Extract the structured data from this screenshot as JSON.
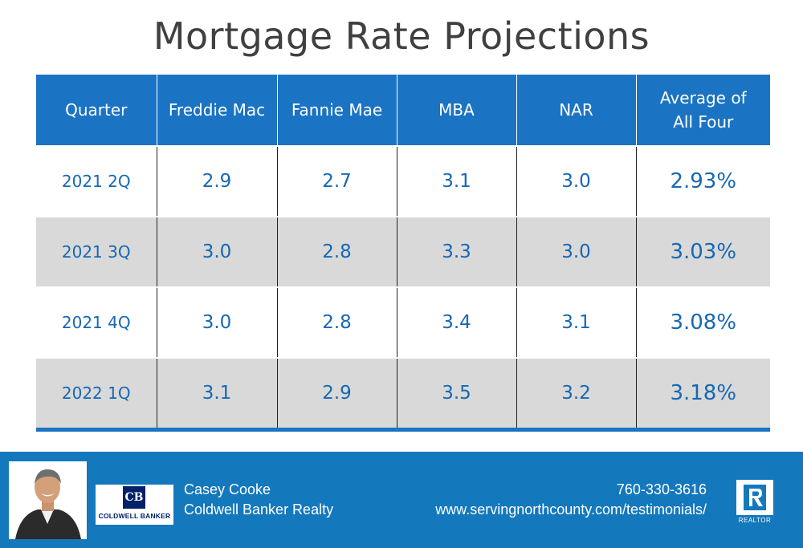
{
  "title": "Mortgage Rate Projections",
  "table": {
    "headers": [
      "Quarter",
      "Freddie Mac",
      "Fannie Mae",
      "MBA",
      "NAR",
      "Average of All Four"
    ],
    "rows": [
      [
        "2021 2Q",
        "2.9",
        "2.7",
        "3.1",
        "3.0",
        "2.93%"
      ],
      [
        "2021 3Q",
        "3.0",
        "2.8",
        "3.3",
        "3.0",
        "3.03%"
      ],
      [
        "2021 4Q",
        "3.0",
        "2.8",
        "3.4",
        "3.1",
        "3.08%"
      ],
      [
        "2022 1Q",
        "3.1",
        "2.9",
        "3.5",
        "3.2",
        "3.18%"
      ]
    ]
  },
  "footer": {
    "agent_name": "Casey Cooke",
    "company": "Coldwell Banker Realty",
    "phone": "760-330-3616",
    "website": "www.servingnorthcounty.com/testimonials/",
    "brand_logo_text": "COLDWELL BANKER",
    "brand_mark": "CB",
    "realtor_label": "REALTOR"
  },
  "colors": {
    "header_blue": "#1a73c3",
    "footer_blue": "#1478bd",
    "value_blue": "#1668b3",
    "row_gray": "#d9d9d9",
    "title_gray": "#404040"
  }
}
